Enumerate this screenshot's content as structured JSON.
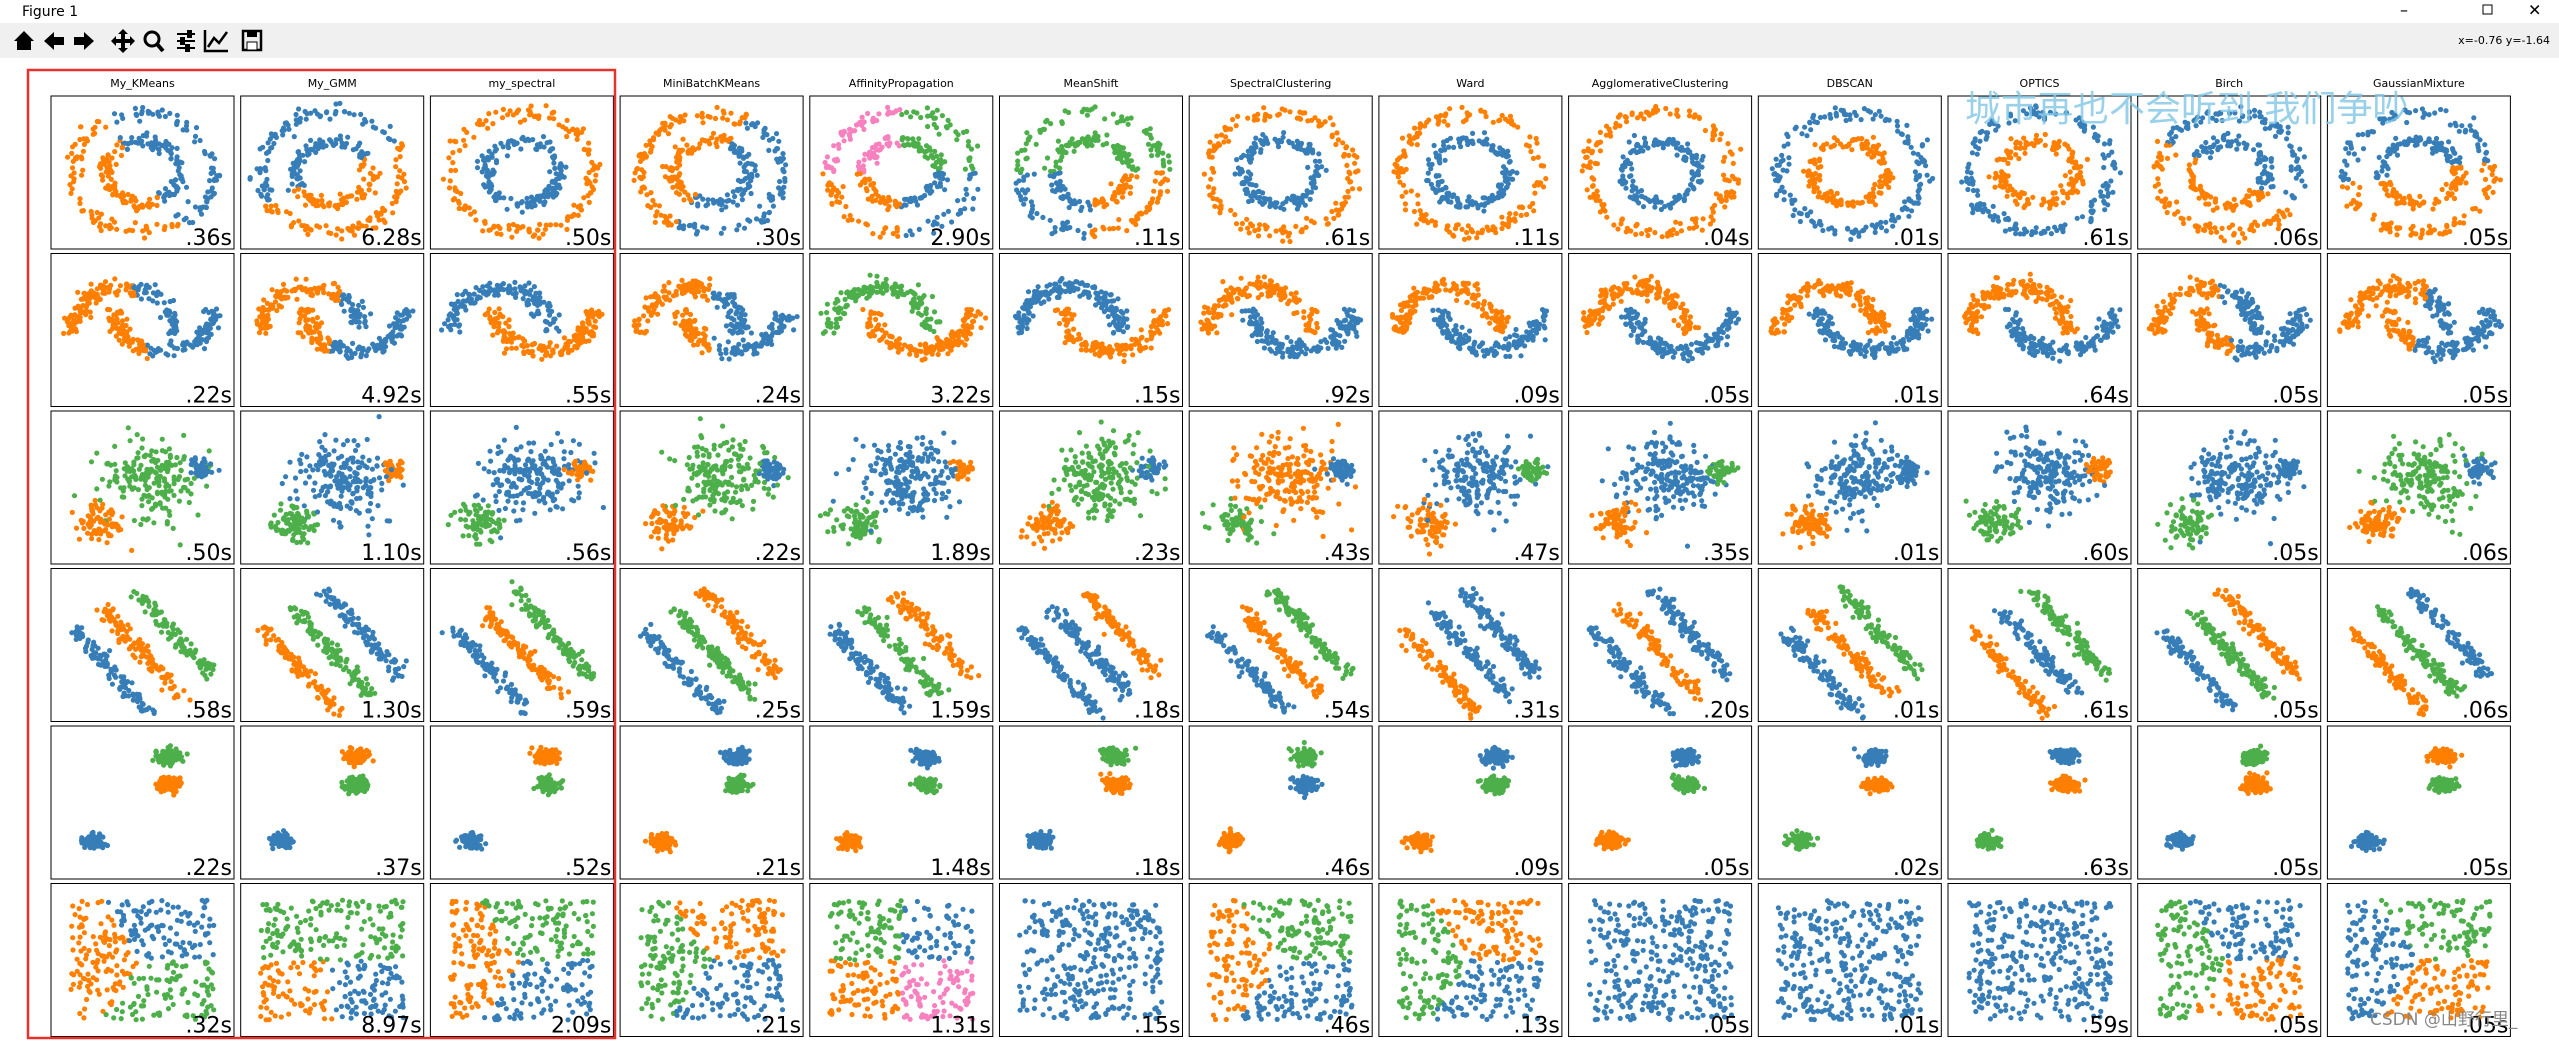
{
  "window": {
    "title": "Figure 1",
    "coords": "x=-0.76 y=-1.64"
  },
  "grid": {
    "titles": [
      "My_KMeans",
      "My_GMM",
      "my_spectral",
      "MiniBatchKMeans",
      "AffinityPropagation",
      "MeanShift",
      "SpectralClustering",
      "Ward",
      "AgglomerativeClustering",
      "DBSCAN",
      "OPTICS",
      "Birch",
      "GaussianMixture"
    ],
    "rows": [
      [
        ".36s",
        "6.28s",
        ".50s",
        ".30s",
        "2.90s",
        ".11s",
        ".61s",
        ".11s",
        ".04s",
        ".01s",
        ".61s",
        ".06s",
        ".05s"
      ],
      [
        ".22s",
        "4.92s",
        ".55s",
        ".24s",
        "3.22s",
        ".15s",
        ".92s",
        ".09s",
        ".05s",
        ".01s",
        ".64s",
        ".05s",
        ".05s"
      ],
      [
        ".50s",
        "1.10s",
        ".56s",
        ".22s",
        "1.89s",
        ".23s",
        ".43s",
        ".47s",
        ".35s",
        ".01s",
        ".60s",
        ".05s",
        ".06s"
      ],
      [
        ".58s",
        "1.30s",
        ".59s",
        ".25s",
        "1.59s",
        ".18s",
        ".54s",
        ".31s",
        ".20s",
        ".01s",
        ".61s",
        ".05s",
        ".06s"
      ],
      [
        ".22s",
        ".37s",
        ".52s",
        ".21s",
        "1.48s",
        ".18s",
        ".46s",
        ".09s",
        ".05s",
        ".02s",
        ".63s",
        ".05s",
        ".05s"
      ],
      [
        ".32s",
        "8.97s",
        "2.09s",
        ".21s",
        "1.31s",
        ".15s",
        ".46s",
        ".13s",
        ".05s",
        ".01s",
        ".59s",
        ".05s",
        ".05s"
      ]
    ]
  },
  "watermark": "城市再也不会听到 我们争吵",
  "credit": "CSDN @山野行里_"
}
